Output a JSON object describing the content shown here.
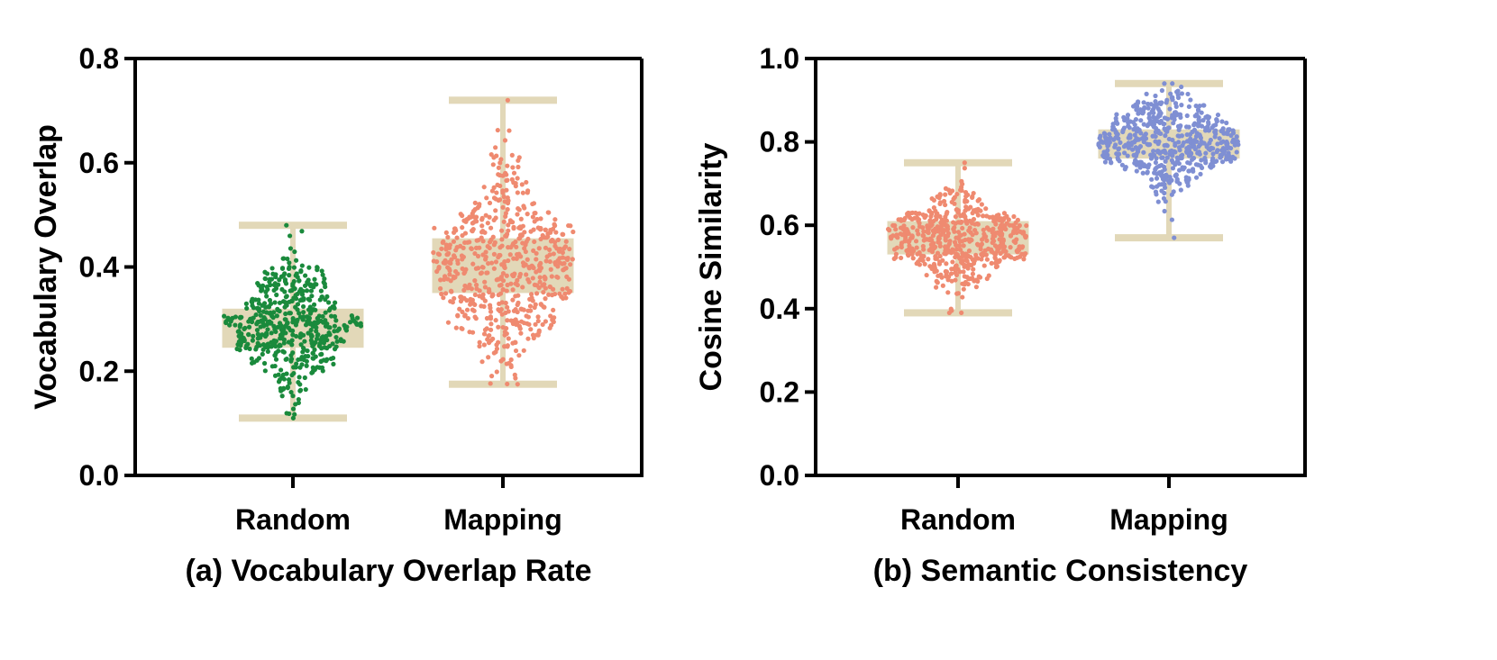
{
  "chart_data": [
    {
      "type": "box-swarm",
      "caption": "(a) Vocabulary Overlap Rate",
      "ylabel": "Vocabulary Overlap",
      "xlabel": "",
      "ylim": [
        0,
        0.8
      ],
      "yticks": [
        "0.0",
        "0.2",
        "0.4",
        "0.6",
        "0.8"
      ],
      "categories": [
        "Random",
        "Mapping"
      ],
      "series": [
        {
          "category": "Random",
          "color": "#1a8a3c",
          "box_color": "#e2d8b8",
          "min": 0.11,
          "q1": 0.245,
          "median": 0.28,
          "q3": 0.32,
          "max": 0.48,
          "center": 0.29,
          "spread": 0.06,
          "points": 520
        },
        {
          "category": "Mapping",
          "color": "#ef8a70",
          "box_color": "#e2d8b8",
          "min": 0.175,
          "q1": 0.35,
          "median": 0.4,
          "q3": 0.455,
          "max": 0.72,
          "center": 0.4,
          "spread": 0.09,
          "points": 620
        }
      ]
    },
    {
      "type": "box-swarm",
      "caption": "(b) Semantic Consistency",
      "ylabel": "Cosine Similarity",
      "xlabel": "",
      "ylim": [
        0,
        1.0
      ],
      "yticks": [
        "0.0",
        "0.2",
        "0.4",
        "0.6",
        "0.8",
        "1.0"
      ],
      "categories": [
        "Random",
        "Mapping"
      ],
      "series": [
        {
          "category": "Random",
          "color": "#ef8a70",
          "box_color": "#e2d8b8",
          "min": 0.39,
          "q1": 0.53,
          "median": 0.57,
          "q3": 0.61,
          "max": 0.75,
          "center": 0.57,
          "spread": 0.055,
          "points": 560
        },
        {
          "category": "Mapping",
          "color": "#7f8fd3",
          "box_color": "#e2d8b8",
          "min": 0.57,
          "q1": 0.76,
          "median": 0.79,
          "q3": 0.83,
          "max": 0.94,
          "center": 0.8,
          "spread": 0.055,
          "points": 560
        }
      ]
    }
  ]
}
